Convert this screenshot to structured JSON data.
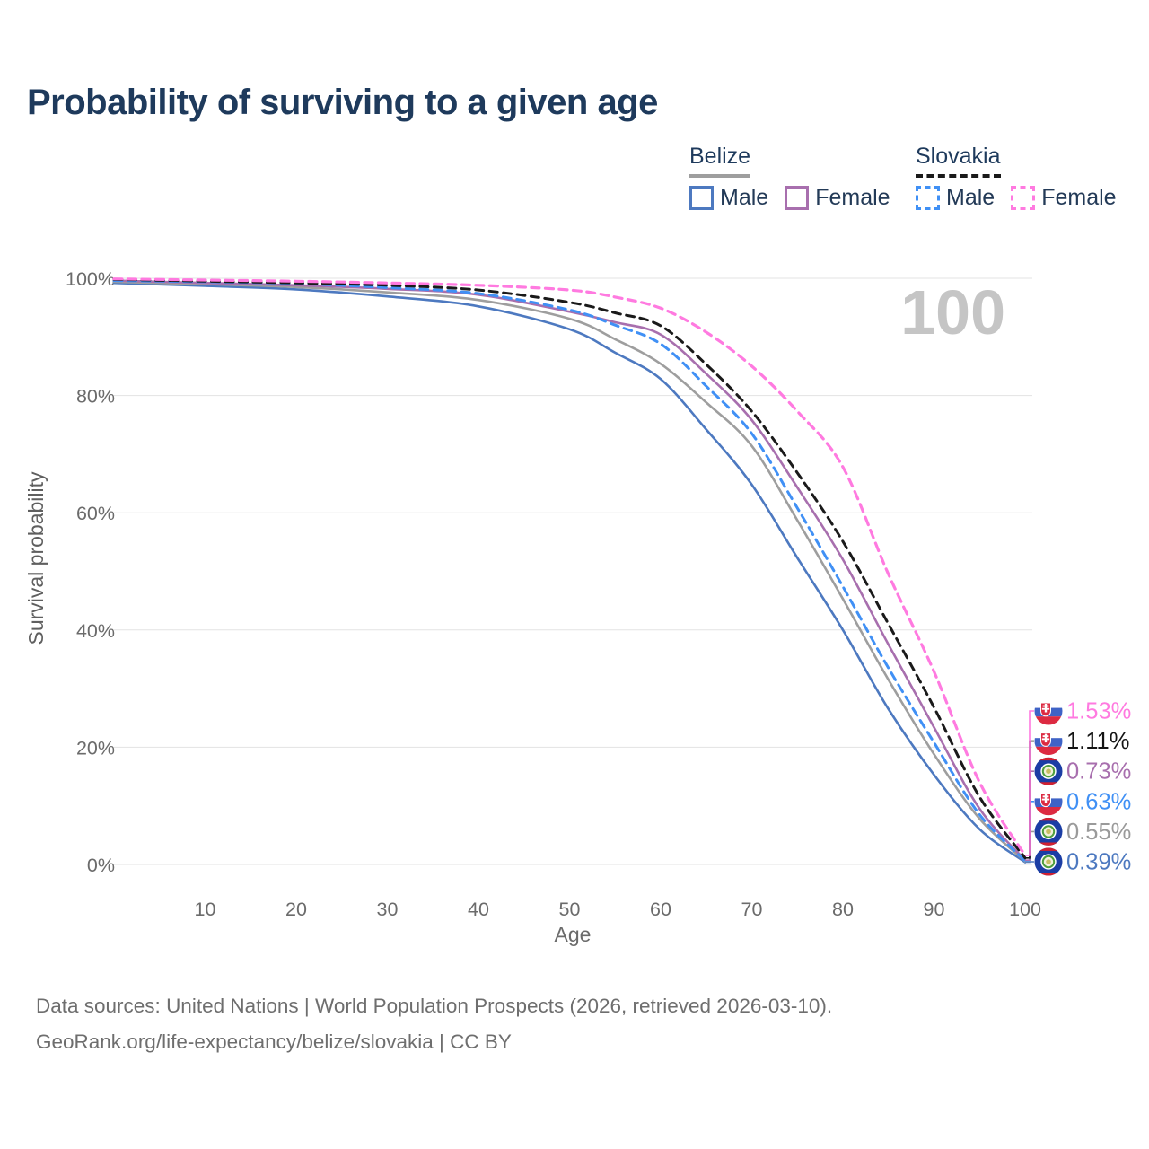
{
  "page": {
    "title": "Probability of surviving to a given age",
    "background": "#ffffff"
  },
  "legend": {
    "groups": [
      {
        "country": "Belize",
        "underline": {
          "color": "#9e9e9e",
          "dash": false
        },
        "items": [
          {
            "label": "Male",
            "color": "#4d79c0",
            "dash": false,
            "series": "belize-male"
          },
          {
            "label": "Female",
            "color": "#a86fae",
            "dash": false,
            "series": "belize-female"
          }
        ]
      },
      {
        "country": "Slovakia",
        "underline": {
          "color": "#1a1a1a",
          "dash": true
        },
        "items": [
          {
            "label": "Male",
            "color": "#4090f5",
            "dash": true,
            "series": "slovakia-male"
          },
          {
            "label": "Female",
            "color": "#ff7ae0",
            "dash": true,
            "series": "slovakia-female"
          }
        ]
      }
    ]
  },
  "chart": {
    "watermark": "100",
    "x_axis": {
      "label": "Age",
      "ticks": [
        {
          "value": 10,
          "label": "10"
        },
        {
          "value": 20,
          "label": "20"
        },
        {
          "value": 30,
          "label": "30"
        },
        {
          "value": 40,
          "label": "40"
        },
        {
          "value": 50,
          "label": "50"
        },
        {
          "value": 60,
          "label": "60"
        },
        {
          "value": 70,
          "label": "70"
        },
        {
          "value": 80,
          "label": "80"
        },
        {
          "value": 90,
          "label": "90"
        },
        {
          "value": 100,
          "label": "100"
        }
      ]
    },
    "y_axis": {
      "label": "Survival probability",
      "ticks": [
        {
          "value": 0,
          "label": "0%"
        },
        {
          "value": 20,
          "label": "20%"
        },
        {
          "value": 40,
          "label": "40%"
        },
        {
          "value": 60,
          "label": "60%"
        },
        {
          "value": 80,
          "label": "80%"
        },
        {
          "value": 100,
          "label": "100%"
        }
      ]
    }
  },
  "chart_data": {
    "type": "line",
    "title": "Probability of surviving to a given age",
    "xlabel": "Age",
    "ylabel": "Survival probability",
    "xlim": [
      0,
      100
    ],
    "ylim": [
      0,
      100
    ],
    "grid": "horizontal",
    "legend_position": "top-right",
    "x_ages": [
      0,
      10,
      20,
      30,
      40,
      50,
      55,
      60,
      65,
      70,
      75,
      80,
      85,
      90,
      95,
      100
    ],
    "series": [
      {
        "id": "belize-male",
        "country": "Belize",
        "sex": "Male",
        "style": "solid",
        "color": "#4d79c0",
        "width": 2.6,
        "values": [
          99.2,
          98.7,
          98.1,
          96.9,
          95.2,
          91.3,
          87.3,
          82.8,
          74.2,
          64.8,
          52.3,
          40.0,
          26.5,
          15.3,
          6.0,
          0.39
        ],
        "end_label": {
          "text": "0.39%",
          "flag": "belize",
          "color": "#4d79c0"
        }
      },
      {
        "id": "belize-total",
        "country": "Belize",
        "sex": "Both",
        "style": "solid",
        "color": "#9e9e9e",
        "width": 2.6,
        "values": [
          99.4,
          99.0,
          98.5,
          97.6,
          96.3,
          93.1,
          89.6,
          85.4,
          78.8,
          71.4,
          58.7,
          45.3,
          31.5,
          18.8,
          7.8,
          0.55
        ],
        "end_label": {
          "text": "0.55%",
          "flag": "belize",
          "color": "#9a9a9a"
        }
      },
      {
        "id": "belize-female",
        "country": "Belize",
        "sex": "Female",
        "style": "solid",
        "color": "#a86fae",
        "width": 2.6,
        "values": [
          99.6,
          99.2,
          98.8,
          98.2,
          97.2,
          94.3,
          92.5,
          90.4,
          83.7,
          75.8,
          64.3,
          52.0,
          37.5,
          23.4,
          9.5,
          0.73
        ],
        "end_label": {
          "text": "0.73%",
          "flag": "belize",
          "color": "#a86fae"
        }
      },
      {
        "id": "slovakia-male",
        "country": "Slovakia",
        "sex": "Male",
        "style": "dashed",
        "color": "#4090f5",
        "width": 3,
        "values": [
          99.6,
          99.4,
          99.1,
          98.4,
          97.4,
          94.6,
          92.0,
          88.8,
          81.6,
          73.5,
          60.8,
          47.4,
          33.5,
          20.8,
          8.5,
          0.63
        ],
        "end_label": {
          "text": "0.63%",
          "flag": "slovakia",
          "color": "#4090f5"
        }
      },
      {
        "id": "slovakia-total",
        "country": "Slovakia",
        "sex": "Both",
        "style": "dashed",
        "color": "#1a1a1a",
        "width": 3,
        "values": [
          99.8,
          99.5,
          99.2,
          98.8,
          98.0,
          95.9,
          94.1,
          91.9,
          85.3,
          77.3,
          66.8,
          55.1,
          41.0,
          26.8,
          11.5,
          1.11
        ],
        "end_label": {
          "text": "1.11%",
          "flag": "slovakia",
          "color": "#141414"
        }
      },
      {
        "id": "slovakia-female",
        "country": "Slovakia",
        "sex": "Female",
        "style": "dashed",
        "color": "#ff7ae0",
        "width": 3.2,
        "values": [
          99.9,
          99.7,
          99.5,
          99.2,
          98.8,
          98.0,
          96.8,
          94.9,
          90.8,
          85.0,
          77.3,
          67.8,
          49.5,
          32.9,
          14.0,
          1.53
        ],
        "end_label": {
          "text": "1.53%",
          "flag": "slovakia",
          "color": "#ff7ae0"
        }
      }
    ]
  },
  "footer": {
    "line1": "Data sources: United Nations | World Population Prospects (2026, retrieved 2026-03-10).",
    "line2": "GeoRank.org/life-expectancy/belize/slovakia | CC BY"
  }
}
